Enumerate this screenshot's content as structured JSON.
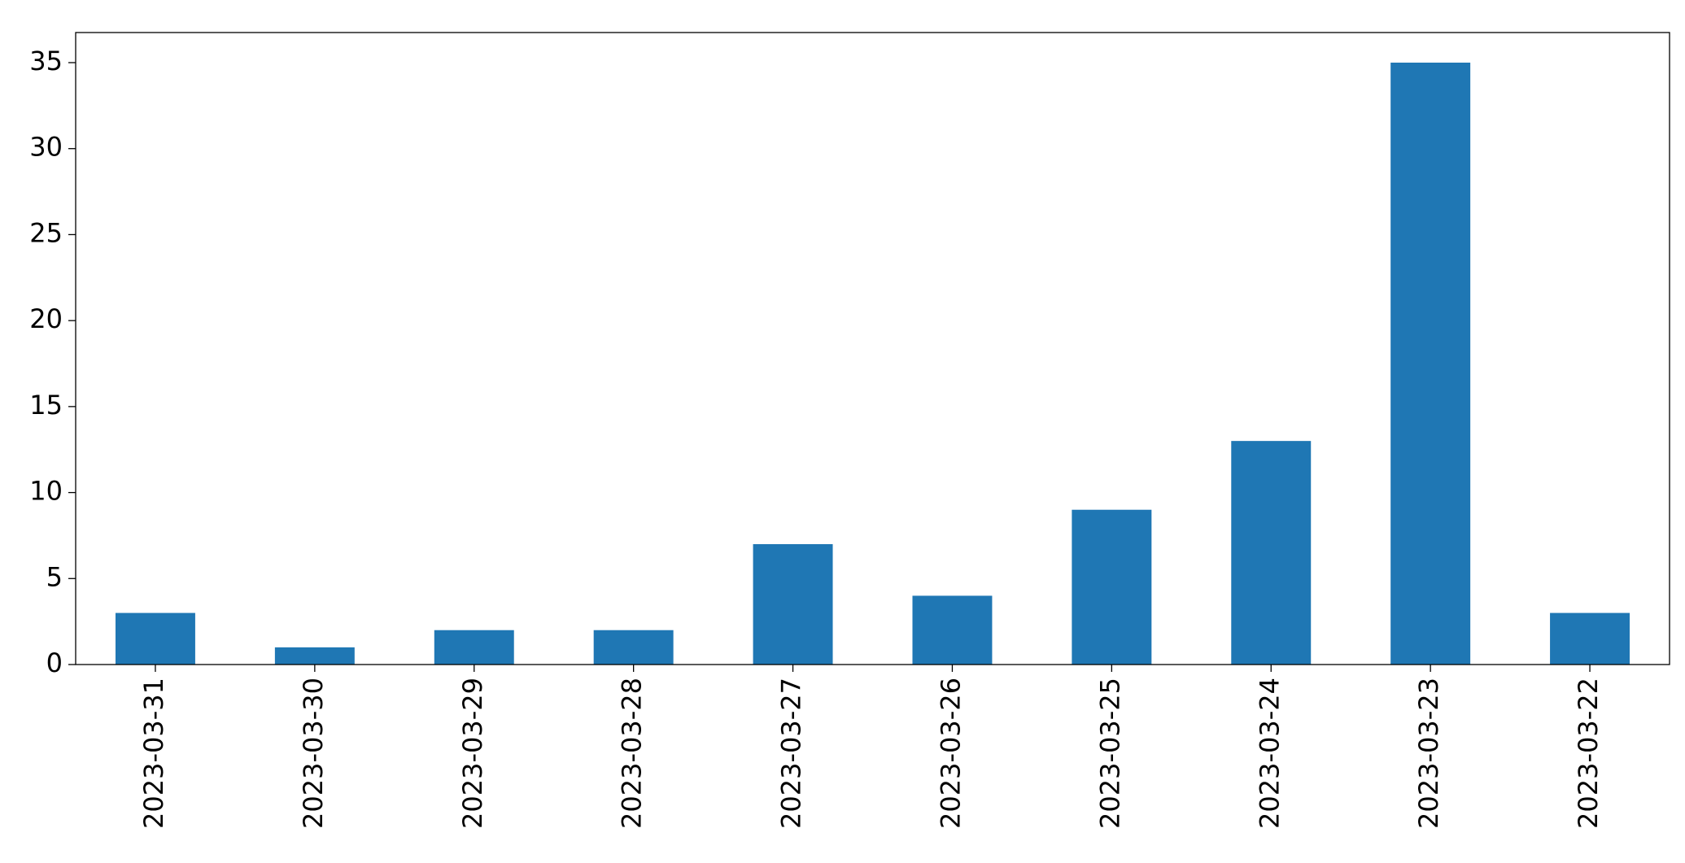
{
  "chart_data": {
    "type": "bar",
    "categories": [
      "2023-03-31",
      "2023-03-30",
      "2023-03-29",
      "2023-03-28",
      "2023-03-27",
      "2023-03-26",
      "2023-03-25",
      "2023-03-24",
      "2023-03-23",
      "2023-03-22"
    ],
    "values": [
      3,
      1,
      2,
      2,
      7,
      4,
      9,
      13,
      35,
      3
    ],
    "color": "#1f77b4",
    "ylim": [
      0,
      36.75
    ],
    "yticks": [
      0,
      5,
      10,
      15,
      20,
      25,
      30,
      35
    ],
    "grid": false
  }
}
